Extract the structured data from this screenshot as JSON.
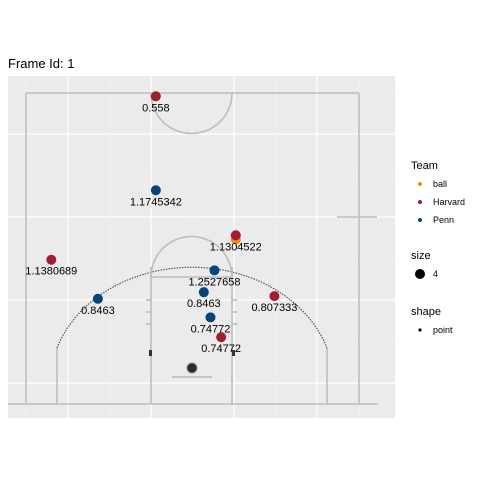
{
  "title": "Frame Id: 1",
  "chart_data": {
    "type": "scatter",
    "title": "Frame Id: 1",
    "xlabel": "",
    "ylabel": "",
    "xlim": [
      0,
      50
    ],
    "ylim": [
      0,
      47
    ],
    "grid": true,
    "legend_position": "right",
    "colors": {
      "ball": "#f28e00",
      "Harvard": "#a51c30",
      "Penn": "#01457f"
    },
    "series": [
      {
        "name": "ball",
        "points": [
          {
            "x": 31.5,
            "y": 24.9,
            "label": ""
          }
        ]
      },
      {
        "name": "Harvard",
        "points": [
          {
            "x": 19.5,
            "y": 46.5,
            "label": "0.558"
          },
          {
            "x": 31.5,
            "y": 25.5,
            "label": "1.1304522"
          },
          {
            "x": 3.8,
            "y": 21.8,
            "label": "1.1380689"
          },
          {
            "x": 37.3,
            "y": 16.3,
            "label": "0.807333"
          },
          {
            "x": 29.3,
            "y": 10.1,
            "label": "0.74772"
          }
        ]
      },
      {
        "name": "Penn",
        "points": [
          {
            "x": 19.5,
            "y": 32.3,
            "label": "1.1745342"
          },
          {
            "x": 28.3,
            "y": 20.2,
            "label": "1.2527658"
          },
          {
            "x": 26.7,
            "y": 16.9,
            "label": "0.8463"
          },
          {
            "x": 10.8,
            "y": 15.9,
            "label": "0.8463"
          },
          {
            "x": 27.7,
            "y": 13.1,
            "label": "0.74772"
          }
        ]
      }
    ]
  },
  "legend": {
    "team_title": "Team",
    "team_items": [
      {
        "label": "ball",
        "color": "#f28e00"
      },
      {
        "label": "Harvard",
        "color": "#a51c30"
      },
      {
        "label": "Penn",
        "color": "#01457f"
      }
    ],
    "size_title": "size",
    "size_item": "4",
    "shape_title": "shape",
    "shape_item": "point"
  }
}
